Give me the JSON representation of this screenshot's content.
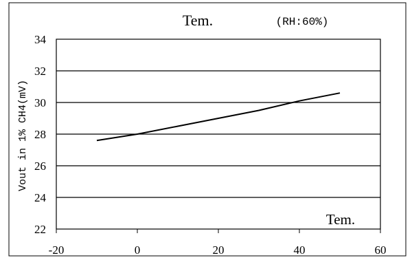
{
  "chart_data": {
    "type": "line",
    "title": "Tem.",
    "subtitle": "(RH:60%)",
    "xlabel": "Tem.",
    "ylabel": "Vout in 1% CH4(mV)",
    "xlim": [
      -20,
      60
    ],
    "ylim": [
      22,
      34
    ],
    "xticks": [
      "-20",
      "0",
      "20",
      "40",
      "60"
    ],
    "yticks": [
      "22",
      "24",
      "26",
      "28",
      "30",
      "32",
      "34"
    ],
    "grid": "horizontal",
    "series": [
      {
        "x": [
          -10,
          0,
          10,
          20,
          30,
          40,
          50
        ],
        "values": [
          27.6,
          28.0,
          28.5,
          29.0,
          29.5,
          30.1,
          30.6
        ],
        "color": "#000000"
      }
    ]
  }
}
